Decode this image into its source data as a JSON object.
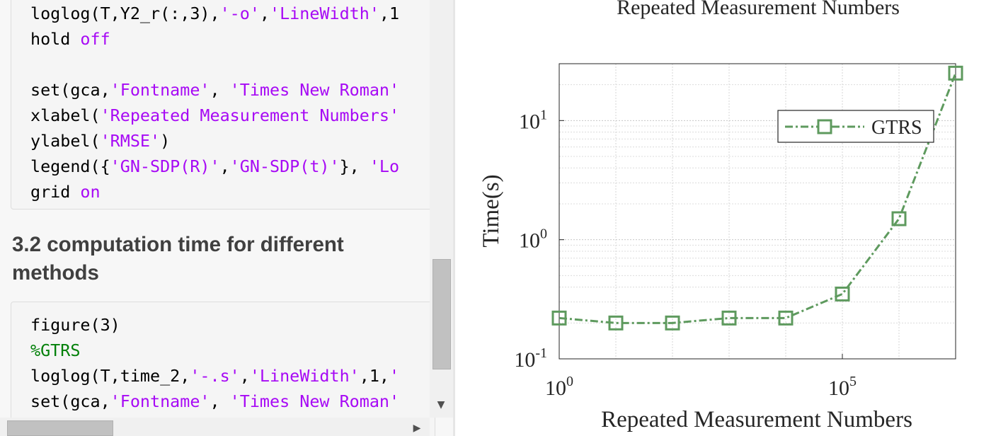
{
  "code_cell_1": {
    "lines": [
      [
        {
          "t": "loglog(T,Y2_r(:,3),",
          "c": "plain"
        },
        {
          "t": "'-o'",
          "c": "str"
        },
        {
          "t": ",",
          "c": "plain"
        },
        {
          "t": "'LineWidth'",
          "c": "str"
        },
        {
          "t": ",1",
          "c": "plain"
        }
      ],
      [
        {
          "t": "hold ",
          "c": "plain"
        },
        {
          "t": "off",
          "c": "kw"
        }
      ],
      [],
      [
        {
          "t": "set(gca,",
          "c": "plain"
        },
        {
          "t": "'Fontname'",
          "c": "str"
        },
        {
          "t": ", ",
          "c": "plain"
        },
        {
          "t": "'Times New Roman'",
          "c": "str"
        }
      ],
      [
        {
          "t": "xlabel(",
          "c": "plain"
        },
        {
          "t": "'Repeated Measurement Numbers'",
          "c": "str"
        }
      ],
      [
        {
          "t": "ylabel(",
          "c": "plain"
        },
        {
          "t": "'RMSE'",
          "c": "str"
        },
        {
          "t": ")",
          "c": "plain"
        }
      ],
      [
        {
          "t": "legend({",
          "c": "plain"
        },
        {
          "t": "'GN-SDP(R)'",
          "c": "str"
        },
        {
          "t": ",",
          "c": "plain"
        },
        {
          "t": "'GN-SDP(t)'",
          "c": "str"
        },
        {
          "t": "}, ",
          "c": "plain"
        },
        {
          "t": "'Lo",
          "c": "str"
        }
      ],
      [
        {
          "t": "grid ",
          "c": "plain"
        },
        {
          "t": "on",
          "c": "kw"
        }
      ]
    ]
  },
  "section_heading": "3.2 computation time for different methods",
  "code_cell_2": {
    "lines": [
      [
        {
          "t": "figure(3)",
          "c": "plain"
        }
      ],
      [
        {
          "t": "%GTRS",
          "c": "cmt"
        }
      ],
      [
        {
          "t": "loglog(T,time_2,",
          "c": "plain"
        },
        {
          "t": "'-.s'",
          "c": "str"
        },
        {
          "t": ",",
          "c": "plain"
        },
        {
          "t": "'LineWidth'",
          "c": "str"
        },
        {
          "t": ",1,",
          "c": "plain"
        },
        {
          "t": "'",
          "c": "str"
        }
      ],
      [
        {
          "t": "set(gca,",
          "c": "plain"
        },
        {
          "t": "'Fontname'",
          "c": "str"
        },
        {
          "t": ", ",
          "c": "plain"
        },
        {
          "t": "'Times New Roman'",
          "c": "str"
        }
      ]
    ]
  },
  "scrollbar_icons": {
    "down": "triangle-down-icon",
    "right": "triangle-right-icon"
  },
  "colors": {
    "series": "#5e9a5e",
    "string": "#a709f5",
    "comment": "#028009"
  },
  "chart_data": {
    "type": "line",
    "title": "Repeated Measurement Numbers",
    "xlabel": "Repeated Measurement Numbers",
    "ylabel": "Time(s)",
    "x_scale": "log",
    "y_scale": "log",
    "xlim": [
      1,
      10000000
    ],
    "ylim": [
      0.1,
      30
    ],
    "x_ticks": [
      {
        "v": 1,
        "base": "10",
        "exp": "0"
      },
      {
        "v": 100000,
        "base": "10",
        "exp": "5"
      }
    ],
    "y_ticks": [
      {
        "v": 0.1,
        "base": "10",
        "exp": "-1"
      },
      {
        "v": 1,
        "base": "10",
        "exp": "0"
      },
      {
        "v": 10,
        "base": "10",
        "exp": "1"
      }
    ],
    "grid": true,
    "legend_position": "top-right",
    "series": [
      {
        "name": "GTRS",
        "line_style": "dash-dot",
        "marker": "square",
        "color": "#5e9a5e",
        "x": [
          1,
          10,
          100,
          1000,
          10000,
          100000,
          1000000,
          10000000
        ],
        "y": [
          0.22,
          0.2,
          0.2,
          0.22,
          0.22,
          0.35,
          1.5,
          25
        ]
      }
    ]
  }
}
